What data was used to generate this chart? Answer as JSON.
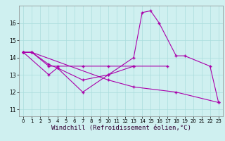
{
  "background_color": "#cff0f0",
  "grid_color": "#aadddd",
  "line_color": "#aa00aa",
  "xlabel": "Windchill (Refroidissement éolien,°C)",
  "xlabel_fontsize": 6.5,
  "ylabel_ticks": [
    11,
    12,
    13,
    14,
    15,
    16
  ],
  "xlim": [
    -0.5,
    23.5
  ],
  "ylim": [
    10.6,
    17.0
  ],
  "x_ticks": [
    0,
    1,
    2,
    3,
    4,
    5,
    6,
    7,
    8,
    9,
    10,
    11,
    12,
    13,
    14,
    15,
    16,
    17,
    18,
    19,
    20,
    21,
    22,
    23
  ],
  "curve1_x": [
    0,
    1,
    3,
    4,
    7,
    10,
    13,
    14,
    15,
    16,
    18,
    19,
    22,
    23
  ],
  "curve1_y": [
    14.3,
    14.3,
    13.6,
    13.4,
    12.0,
    13.0,
    14.0,
    16.6,
    16.7,
    16.0,
    14.1,
    14.1,
    13.5,
    11.4
  ],
  "curve2_x": [
    0,
    1,
    3,
    4,
    7,
    10,
    13,
    17
  ],
  "curve2_y": [
    14.3,
    14.3,
    13.5,
    13.5,
    13.5,
    13.5,
    13.5,
    13.5
  ],
  "curve3_x": [
    0,
    3,
    4,
    7,
    10,
    13
  ],
  "curve3_y": [
    14.3,
    13.0,
    13.4,
    12.7,
    13.0,
    13.5
  ],
  "curve4_x": [
    0,
    1,
    10,
    13,
    18,
    23
  ],
  "curve4_y": [
    14.3,
    14.3,
    12.7,
    12.3,
    12.0,
    11.4
  ]
}
